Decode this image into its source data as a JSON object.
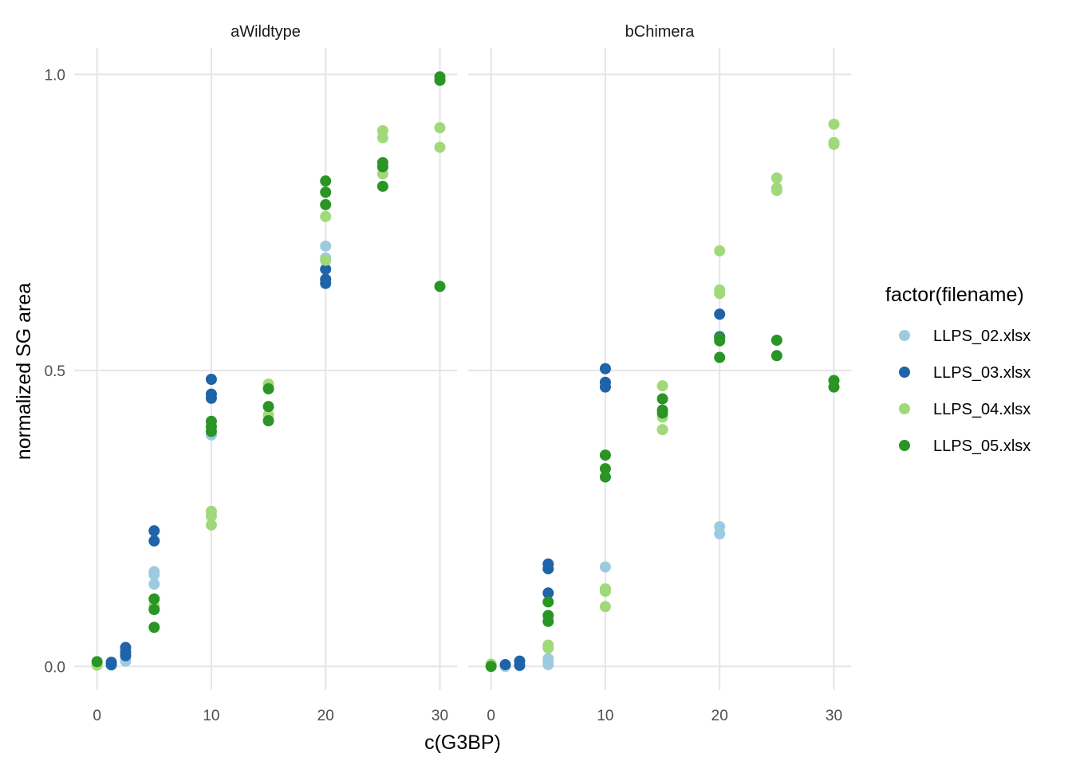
{
  "chart_data": {
    "type": "scatter",
    "xlabel": "c(G3BP)",
    "ylabel": "normalized SG area",
    "xlim": [
      -2,
      31.5
    ],
    "ylim": [
      -0.04,
      1.045
    ],
    "x_ticks": [
      0,
      10,
      20,
      30
    ],
    "x_tick_labels": [
      "0",
      "10",
      "20",
      "30"
    ],
    "y_ticks": [
      0,
      0.5,
      1
    ],
    "y_tick_labels": [
      "0.0",
      "0.5",
      "1.0"
    ],
    "grid": true,
    "legend": {
      "title": "factor(filename)",
      "placement": "right",
      "entries": [
        "LLPS_02.xlsx",
        "LLPS_03.xlsx",
        "LLPS_04.xlsx",
        "LLPS_05.xlsx"
      ]
    },
    "colors": {
      "LLPS_02.xlsx": "#9ecae1",
      "LLPS_03.xlsx": "#1f63a8",
      "LLPS_04.xlsx": "#a1d97a",
      "LLPS_05.xlsx": "#2a9425"
    },
    "panels": [
      {
        "title": "aWildtype",
        "series": [
          {
            "name": "LLPS_02.xlsx",
            "points": [
              [
                0,
                0.004
              ],
              [
                1.25,
                0.002
              ],
              [
                2.5,
                0.009
              ],
              [
                5,
                0.16
              ],
              [
                5,
                0.155
              ],
              [
                5,
                0.139
              ],
              [
                10,
                0.391
              ],
              [
                20,
                0.71
              ],
              [
                20,
                0.69
              ]
            ]
          },
          {
            "name": "LLPS_03.xlsx",
            "points": [
              [
                1.25,
                0.007
              ],
              [
                1.25,
                0.003
              ],
              [
                2.5,
                0.032
              ],
              [
                2.5,
                0.024
              ],
              [
                2.5,
                0.018
              ],
              [
                5,
                0.229
              ],
              [
                5,
                0.212
              ],
              [
                10,
                0.485
              ],
              [
                10,
                0.46
              ],
              [
                10,
                0.453
              ],
              [
                20,
                0.671
              ],
              [
                20,
                0.654
              ],
              [
                20,
                0.647
              ]
            ]
          },
          {
            "name": "LLPS_04.xlsx",
            "points": [
              [
                0,
                0.002
              ],
              [
                5,
                0.102
              ],
              [
                10,
                0.262
              ],
              [
                10,
                0.254
              ],
              [
                10,
                0.239
              ],
              [
                15,
                0.477
              ],
              [
                15,
                0.425
              ],
              [
                20,
                0.76
              ],
              [
                20,
                0.686
              ],
              [
                25,
                0.905
              ],
              [
                25,
                0.893
              ],
              [
                25,
                0.832
              ],
              [
                30,
                0.91
              ],
              [
                30,
                0.877
              ]
            ]
          },
          {
            "name": "LLPS_05.xlsx",
            "points": [
              [
                0,
                0.008
              ],
              [
                5,
                0.114
              ],
              [
                5,
                0.096
              ],
              [
                5,
                0.066
              ],
              [
                10,
                0.414
              ],
              [
                10,
                0.405
              ],
              [
                10,
                0.397
              ],
              [
                15,
                0.469
              ],
              [
                15,
                0.439
              ],
              [
                15,
                0.415
              ],
              [
                20,
                0.82
              ],
              [
                20,
                0.801
              ],
              [
                20,
                0.78
              ],
              [
                25,
                0.851
              ],
              [
                25,
                0.844
              ],
              [
                25,
                0.811
              ],
              [
                30,
                0.996
              ],
              [
                30,
                0.99
              ],
              [
                30,
                0.642
              ]
            ]
          }
        ]
      },
      {
        "title": "bChimera",
        "series": [
          {
            "name": "LLPS_02.xlsx",
            "points": [
              [
                1.25,
                0.0
              ],
              [
                2.5,
                0.001
              ],
              [
                5,
                0.013
              ],
              [
                5,
                0.008
              ],
              [
                5,
                0.003
              ],
              [
                10,
                0.168
              ],
              [
                20,
                0.236
              ],
              [
                20,
                0.224
              ]
            ]
          },
          {
            "name": "LLPS_03.xlsx",
            "points": [
              [
                1.25,
                0.003
              ],
              [
                2.5,
                0.009
              ],
              [
                2.5,
                0.002
              ],
              [
                5,
                0.173
              ],
              [
                5,
                0.165
              ],
              [
                5,
                0.124
              ],
              [
                10,
                0.503
              ],
              [
                10,
                0.48
              ],
              [
                10,
                0.472
              ],
              [
                20,
                0.595
              ],
              [
                20,
                0.557
              ]
            ]
          },
          {
            "name": "LLPS_04.xlsx",
            "points": [
              [
                0,
                0.004
              ],
              [
                5,
                0.036
              ],
              [
                5,
                0.031
              ],
              [
                10,
                0.131
              ],
              [
                10,
                0.127
              ],
              [
                10,
                0.101
              ],
              [
                15,
                0.474
              ],
              [
                15,
                0.421
              ],
              [
                15,
                0.4
              ],
              [
                20,
                0.702
              ],
              [
                20,
                0.636
              ],
              [
                20,
                0.63
              ],
              [
                25,
                0.825
              ],
              [
                25,
                0.808
              ],
              [
                25,
                0.804
              ],
              [
                30,
                0.916
              ],
              [
                30,
                0.885
              ],
              [
                30,
                0.882
              ]
            ]
          },
          {
            "name": "LLPS_05.xlsx",
            "points": [
              [
                0,
                0.0
              ],
              [
                5,
                0.109
              ],
              [
                5,
                0.086
              ],
              [
                5,
                0.076
              ],
              [
                10,
                0.357
              ],
              [
                10,
                0.334
              ],
              [
                10,
                0.32
              ],
              [
                15,
                0.452
              ],
              [
                15,
                0.433
              ],
              [
                15,
                0.428
              ],
              [
                20,
                0.555
              ],
              [
                20,
                0.55
              ],
              [
                20,
                0.522
              ],
              [
                25,
                0.551
              ],
              [
                25,
                0.525
              ],
              [
                30,
                0.483
              ],
              [
                30,
                0.472
              ]
            ]
          }
        ]
      }
    ]
  }
}
